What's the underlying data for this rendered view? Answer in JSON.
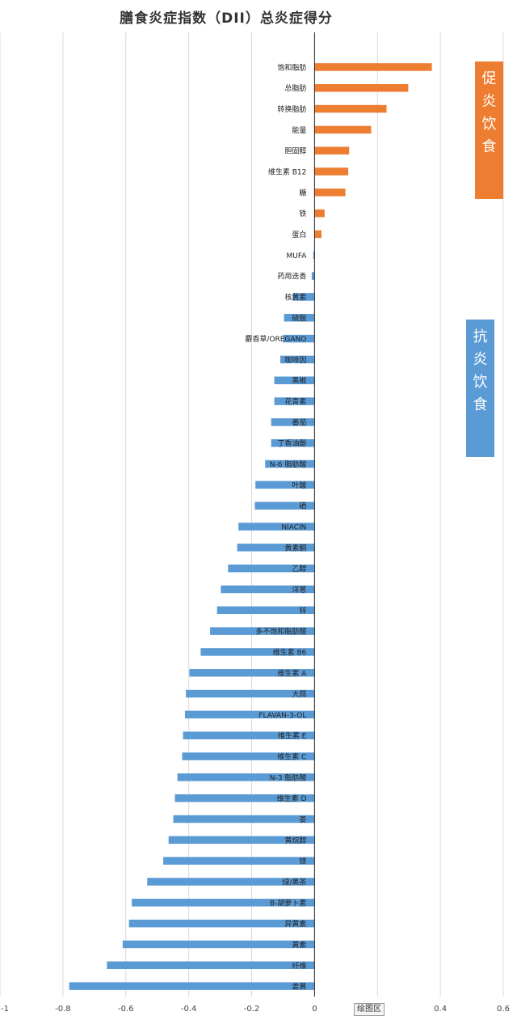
{
  "chart_data": {
    "type": "bar",
    "orientation": "horizontal",
    "title": "膳食炎症指数（DII）总炎症得分",
    "xlim": [
      -1,
      0.6
    ],
    "xticks": [
      "-1",
      "-0.8",
      "-0.6",
      "-0.4",
      "-0.2",
      "0",
      "0.2",
      "0.4",
      "0.6"
    ],
    "grid": true,
    "colors": {
      "positive": "#ED7D31",
      "negative": "#5B9BD5"
    },
    "categories": [
      "饱和脂肪",
      "总脂肪",
      "转换脂肪",
      "能量",
      "胆固醇",
      "维生素 B12",
      "糖",
      "铁",
      "蛋白",
      "MUFA",
      "药用迭香",
      "核黄素",
      "硫胺",
      "麝香草/OREGANO",
      "咖啡因",
      "黑椒",
      "花青素",
      "番茄",
      "丁香油酚",
      "N-6 脂肪酸",
      "叶酸",
      "硒",
      "NIACIN",
      "黄素酮",
      "乙醇",
      "洋葱",
      "锌",
      "多不饱和脂肪酸",
      "维生素 B6",
      "维生素 A",
      "大蒜",
      "FLAVAN-3-OL",
      "维生素 E",
      "维生素 C",
      "N-3 脂肪酸",
      "维生素 D",
      "姜",
      "黄烷醇",
      "镁",
      "绿/黑茶",
      "B-胡萝卜素",
      "异黄素",
      "黄素",
      "纤维",
      "姜黄"
    ],
    "values": [
      0.373,
      0.298,
      0.229,
      0.18,
      0.11,
      0.107,
      0.098,
      0.032,
      0.022,
      -0.004,
      -0.009,
      -0.07,
      -0.097,
      -0.1,
      -0.109,
      -0.128,
      -0.128,
      -0.138,
      -0.138,
      -0.157,
      -0.188,
      -0.19,
      -0.242,
      -0.246,
      -0.275,
      -0.298,
      -0.31,
      -0.332,
      -0.362,
      -0.398,
      -0.409,
      -0.412,
      -0.418,
      -0.421,
      -0.436,
      -0.444,
      -0.449,
      -0.464,
      -0.481,
      -0.532,
      -0.581,
      -0.59,
      -0.61,
      -0.66,
      -0.78
    ]
  },
  "legend": {
    "pro": "促炎饮食",
    "anti": "抗炎饮食"
  },
  "plot_area_label": "绘图区"
}
